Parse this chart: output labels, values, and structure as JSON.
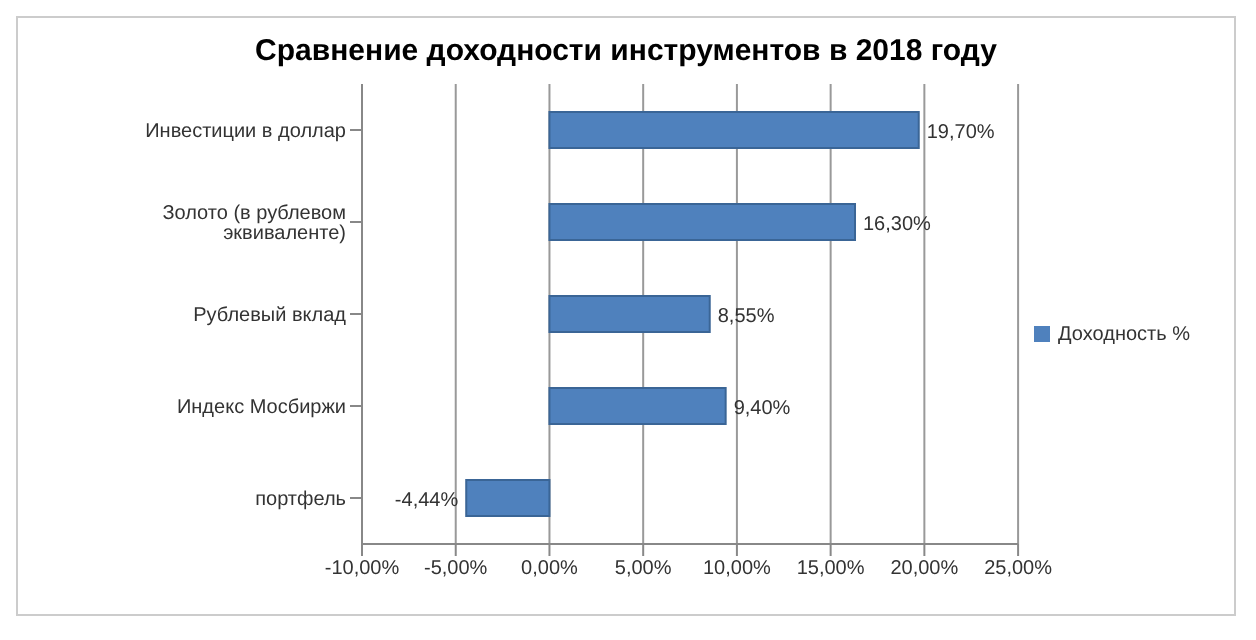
{
  "chart_data": {
    "type": "bar",
    "orientation": "horizontal",
    "title": "Сравнение доходности инструментов в 2018 году",
    "categories": [
      "Инвестиции в доллар",
      "Золото (в рублевом эквиваленте)",
      "Рублевый вклад",
      "Индекс Мосбиржи",
      "портфель"
    ],
    "series": [
      {
        "name": "Доходность  %",
        "color": "#4f81bd",
        "values": [
          19.7,
          16.3,
          8.55,
          9.4,
          -4.44
        ],
        "value_labels": [
          "19,70%",
          "16,30%",
          "8,55%",
          "9,40%",
          "-4,44%"
        ]
      }
    ],
    "xlim": [
      -10,
      25
    ],
    "xticks": [
      {
        "value": -10,
        "label": "-10,00%"
      },
      {
        "value": -5,
        "label": "-5,00%"
      },
      {
        "value": 0,
        "label": "0,00%"
      },
      {
        "value": 5,
        "label": "5,00%"
      },
      {
        "value": 10,
        "label": "10,00%"
      },
      {
        "value": 15,
        "label": "15,00%"
      },
      {
        "value": 20,
        "label": "20,00%"
      },
      {
        "value": 25,
        "label": "25,00%"
      }
    ],
    "grid": "x",
    "legend": "right"
  }
}
